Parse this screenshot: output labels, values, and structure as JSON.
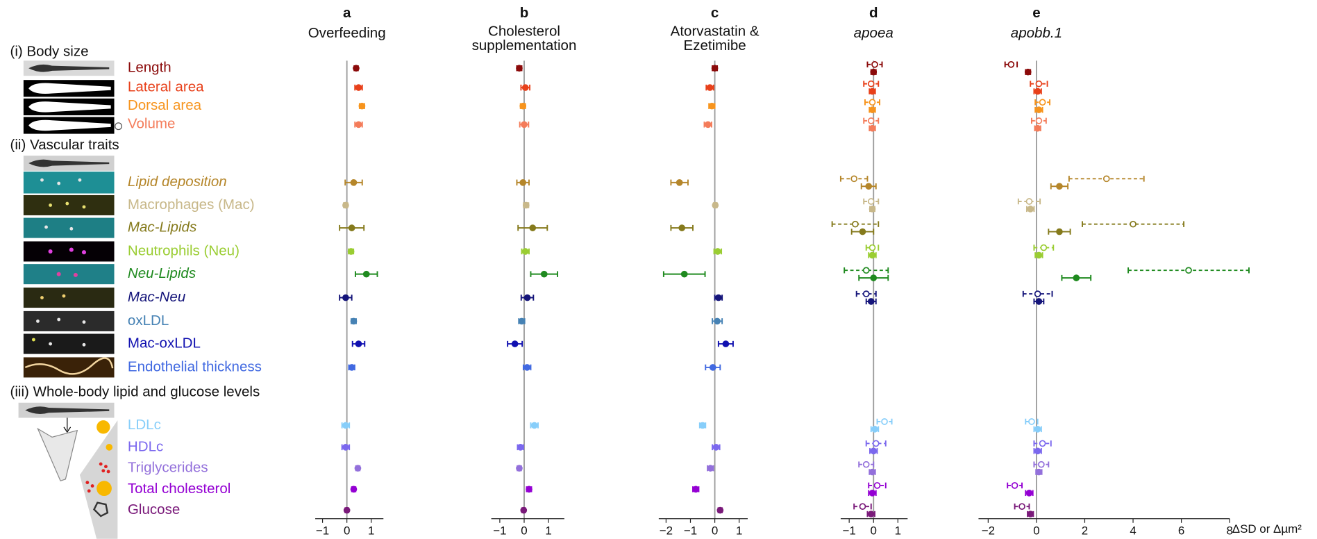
{
  "traits": {
    "groups": [
      {
        "heading": "(i) Body size",
        "items": [
          {
            "label": "Length",
            "color": "#8b0a0a",
            "italic": false
          },
          {
            "label": "Lateral area",
            "color": "#e8401a",
            "italic": false
          },
          {
            "label": "Dorsal area",
            "color": "#f7941d",
            "italic": false
          },
          {
            "label": "Volume",
            "color": "#f47c5a",
            "italic": false
          }
        ]
      },
      {
        "heading": "(ii) Vascular traits",
        "items": [
          {
            "label": "Lipid deposition",
            "color": "#b5862a",
            "italic": true
          },
          {
            "label": "Macrophages (Mac)",
            "color": "#c8b88a",
            "italic": false
          },
          {
            "label": "Mac-Lipids",
            "color": "#857a1c",
            "italic": true
          },
          {
            "label": "Neutrophils (Neu)",
            "color": "#9acd32",
            "italic": false
          },
          {
            "label": "Neu-Lipids",
            "color": "#1f8a1f",
            "italic": true
          },
          {
            "label": "Mac-Neu",
            "color": "#15157a",
            "italic": true
          },
          {
            "label": "oxLDL",
            "color": "#4682b4",
            "italic": false
          },
          {
            "label": "Mac-oxLDL",
            "color": "#1010b0",
            "italic": false
          },
          {
            "label": "Endothelial thickness",
            "color": "#4169e1",
            "italic": false
          }
        ]
      },
      {
        "heading": "(iii) Whole-body lipid and glucose levels",
        "items": [
          {
            "label": "LDLc",
            "color": "#87cefa",
            "italic": false
          },
          {
            "label": "HDLc",
            "color": "#7b68ee",
            "italic": false
          },
          {
            "label": "Triglycerides",
            "color": "#9370db",
            "italic": false
          },
          {
            "label": "Total cholesterol",
            "color": "#9400d3",
            "italic": false
          },
          {
            "label": "Glucose",
            "color": "#7a1a7a",
            "italic": false
          }
        ]
      }
    ]
  },
  "chart_data": [
    {
      "type": "forest",
      "title": "a",
      "subtitle": [
        "Overfeeding"
      ],
      "subtitle_italic": false,
      "xlim": [
        -1.3,
        1.5
      ],
      "xticks": [
        {
          "value": -1,
          "label": "−1"
        },
        0,
        1
      ],
      "series": [
        {
          "style": "filled",
          "values": [
            0.38,
            0.48,
            0.62,
            0.48,
            0.28,
            -0.05,
            0.2,
            0.17,
            0.8,
            -0.05,
            0.28,
            0.48,
            0.2,
            -0.05,
            -0.05,
            0.45,
            0.28,
            0.0
          ],
          "errors": [
            0.08,
            0.15,
            0.1,
            0.15,
            0.35,
            0.08,
            0.5,
            0.1,
            0.45,
            0.25,
            0.1,
            0.25,
            0.12,
            0.15,
            0.15,
            0.08,
            0.08,
            0.07
          ]
        }
      ]
    },
    {
      "type": "forest",
      "title": "b",
      "subtitle": [
        "Cholesterol",
        "supplementation"
      ],
      "subtitle_italic": false,
      "xlim": [
        -1.35,
        1.65
      ],
      "xticks": [
        {
          "value": -1,
          "label": "−1"
        },
        0,
        1
      ],
      "series": [
        {
          "style": "filled",
          "values": [
            -0.2,
            0.05,
            -0.05,
            0.0,
            -0.05,
            0.08,
            0.35,
            0.05,
            0.82,
            0.13,
            -0.1,
            -0.38,
            0.12,
            0.42,
            -0.15,
            -0.2,
            0.2,
            -0.02
          ],
          "errors": [
            0.1,
            0.18,
            0.1,
            0.18,
            0.25,
            0.1,
            0.6,
            0.15,
            0.55,
            0.25,
            0.12,
            0.3,
            0.15,
            0.15,
            0.12,
            0.08,
            0.1,
            0.07
          ]
        }
      ]
    },
    {
      "type": "forest",
      "title": "c",
      "subtitle": [
        "Atorvastatin &",
        "Ezetimibe"
      ],
      "subtitle_italic": false,
      "xlim": [
        -2.3,
        1.35
      ],
      "xticks": [
        {
          "value": -2,
          "label": "−2"
        },
        {
          "value": -1,
          "label": "−1"
        },
        0,
        1
      ],
      "series": [
        {
          "style": "filled",
          "values": [
            0.0,
            -0.2,
            -0.12,
            -0.28,
            -1.45,
            0.02,
            -1.35,
            0.12,
            -1.25,
            0.15,
            0.1,
            0.45,
            -0.08,
            -0.5,
            0.05,
            -0.18,
            -0.78,
            0.22
          ],
          "errors": [
            0.1,
            0.15,
            0.12,
            0.15,
            0.35,
            0.07,
            0.45,
            0.15,
            0.85,
            0.15,
            0.2,
            0.3,
            0.3,
            0.12,
            0.15,
            0.12,
            0.12,
            0.08
          ]
        }
      ]
    },
    {
      "type": "forest",
      "title": "d",
      "subtitle": [
        "apoea"
      ],
      "subtitle_italic": true,
      "xlim": [
        -1.35,
        1.4
      ],
      "xticks": [
        {
          "value": -1,
          "label": "−1"
        },
        0,
        1
      ],
      "series": [
        {
          "style": "open",
          "values": [
            0.05,
            -0.1,
            -0.05,
            -0.1,
            -0.8,
            -0.1,
            -0.75,
            -0.05,
            -0.3,
            -0.3,
            null,
            null,
            null,
            0.45,
            0.1,
            -0.3,
            0.15,
            -0.45
          ],
          "errors": [
            0.3,
            0.3,
            0.3,
            0.3,
            0.55,
            0.3,
            0.95,
            0.25,
            0.9,
            0.4,
            null,
            null,
            null,
            0.3,
            0.4,
            0.3,
            0.35,
            0.35
          ]
        },
        {
          "style": "filled",
          "values": [
            0.0,
            -0.05,
            -0.05,
            -0.05,
            -0.2,
            -0.05,
            -0.45,
            -0.05,
            0.0,
            -0.1,
            null,
            null,
            null,
            0.05,
            0.0,
            -0.05,
            -0.05,
            -0.1
          ],
          "errors": [
            0.1,
            0.12,
            0.12,
            0.12,
            0.3,
            0.1,
            0.45,
            0.15,
            0.6,
            0.2,
            null,
            null,
            null,
            0.15,
            0.15,
            0.12,
            0.15,
            0.15
          ]
        }
      ]
    },
    {
      "type": "forest",
      "title": "e",
      "subtitle": [
        "apobb.1"
      ],
      "subtitle_italic": true,
      "xlim": [
        -2.4,
        8
      ],
      "xticks": [
        {
          "value": -2,
          "label": "−2"
        },
        0,
        2,
        4,
        6,
        8
      ],
      "x_label": "ΔSD or Δµm²",
      "series": [
        {
          "style": "open",
          "values": [
            -1.05,
            0.1,
            0.25,
            0.1,
            2.9,
            -0.3,
            4.0,
            0.3,
            6.3,
            0.05,
            null,
            null,
            null,
            -0.2,
            0.25,
            0.2,
            -0.9,
            -0.6
          ],
          "errors": [
            0.25,
            0.35,
            0.3,
            0.3,
            1.55,
            0.45,
            2.1,
            0.4,
            2.5,
            0.6,
            null,
            null,
            null,
            0.25,
            0.35,
            0.3,
            0.3,
            0.3
          ]
        },
        {
          "style": "filled",
          "values": [
            -0.35,
            0.05,
            0.1,
            0.05,
            0.95,
            -0.25,
            0.95,
            0.1,
            1.65,
            0.1,
            null,
            null,
            null,
            0.05,
            0.05,
            0.1,
            -0.3,
            -0.25
          ],
          "errors": [
            0.1,
            0.15,
            0.15,
            0.12,
            0.35,
            0.15,
            0.45,
            0.15,
            0.6,
            0.2,
            null,
            null,
            null,
            0.15,
            0.15,
            0.12,
            0.15,
            0.12
          ]
        }
      ]
    }
  ]
}
